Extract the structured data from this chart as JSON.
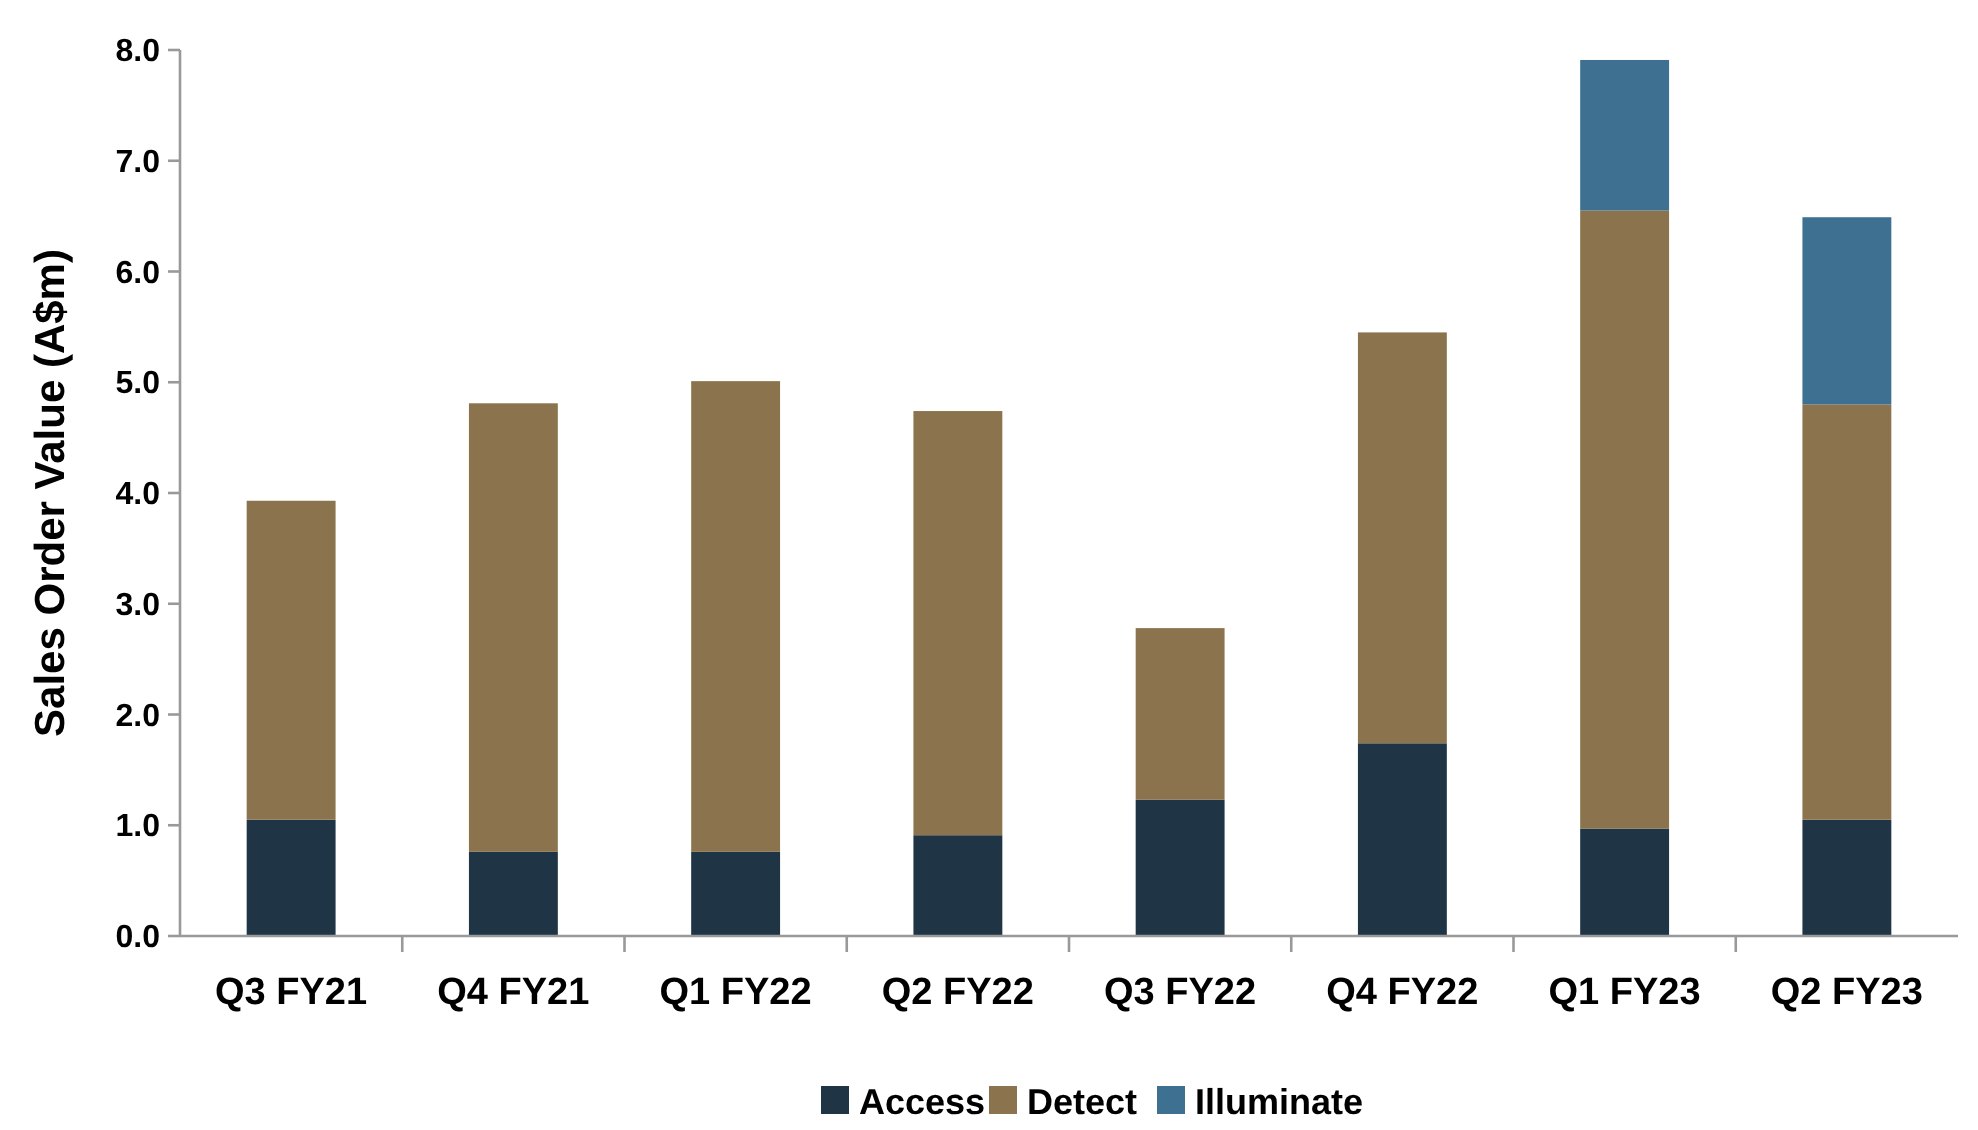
{
  "chart_data": {
    "type": "bar",
    "stacked": true,
    "ylabel": "Sales Order Value (A$m)",
    "categories": [
      "Q3 FY21",
      "Q4 FY21",
      "Q1 FY22",
      "Q2 FY22",
      "Q3 FY22",
      "Q4 FY22",
      "Q1 FY23",
      "Q2 FY23"
    ],
    "series": [
      {
        "name": "Access",
        "color": "#1f3445",
        "values": [
          1.05,
          0.76,
          0.76,
          0.91,
          1.23,
          1.74,
          0.97,
          1.05
        ]
      },
      {
        "name": "Detect",
        "color": "#8b744d",
        "values": [
          2.88,
          4.05,
          4.25,
          3.83,
          1.55,
          3.71,
          5.58,
          3.75
        ]
      },
      {
        "name": "Illuminate",
        "color": "#3e7091",
        "values": [
          null,
          null,
          null,
          null,
          null,
          null,
          1.36,
          1.69
        ]
      }
    ],
    "ylim": [
      0,
      8
    ],
    "yticks": [
      {
        "value": 0,
        "label": "0.0"
      },
      {
        "value": 1,
        "label": "1.0"
      },
      {
        "value": 2,
        "label": "2.0"
      },
      {
        "value": 3,
        "label": "3.0"
      },
      {
        "value": 4,
        "label": "4.0"
      },
      {
        "value": 5,
        "label": "5.0"
      },
      {
        "value": 6,
        "label": "6.0"
      },
      {
        "value": 7,
        "label": "7.0"
      },
      {
        "value": 8,
        "label": "8.0"
      }
    ],
    "grid": false,
    "legend": "bottom"
  }
}
